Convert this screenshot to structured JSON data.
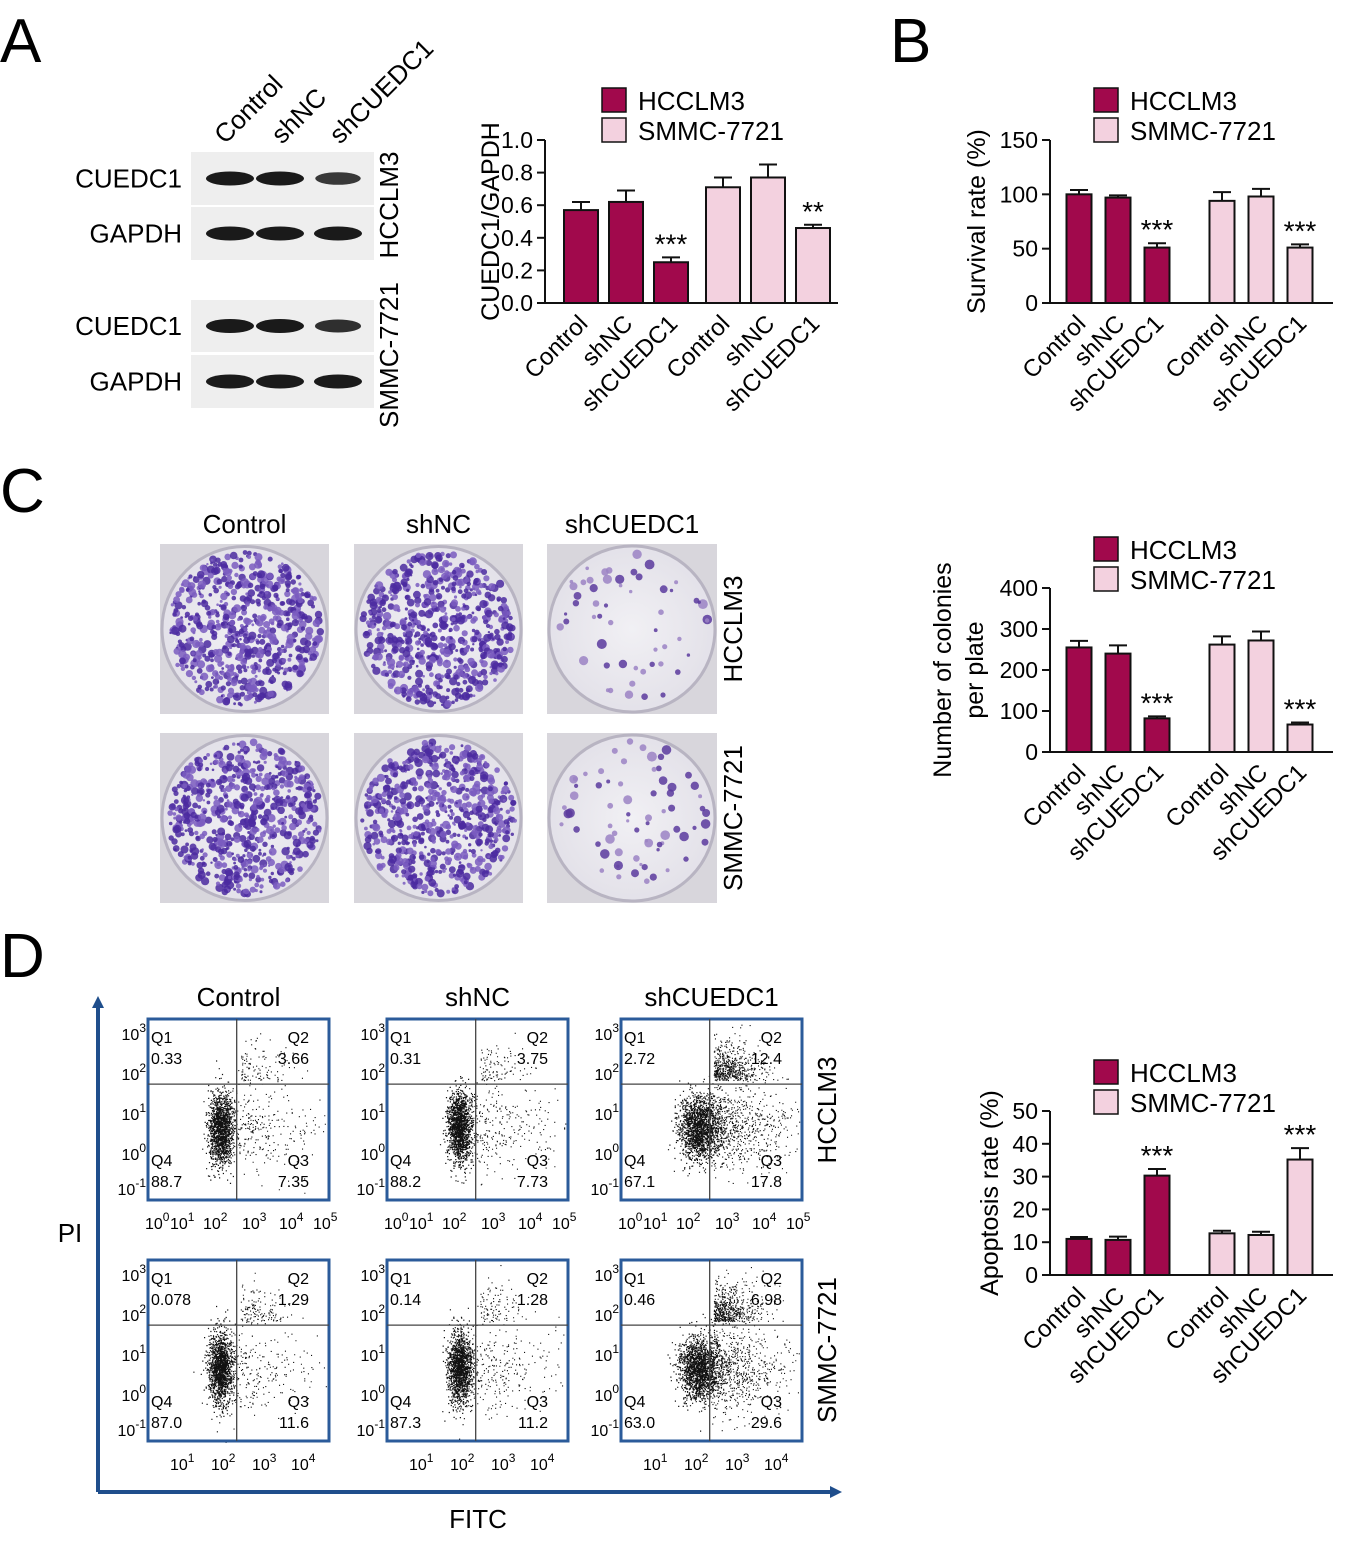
{
  "panels": {
    "A": "A",
    "B": "B",
    "C": "C",
    "D": "D"
  },
  "groups": [
    "Control",
    "shNC",
    "shCUEDC1"
  ],
  "cell_lines": [
    "HCCLM3",
    "SMMC-7721"
  ],
  "colors": {
    "HCCLM3": "#a1094c",
    "SMMC-7721": "#f3d1df",
    "axis": "#111111",
    "flow_border": "#2b5b9a",
    "flow_arrow": "#1f4e8c",
    "stain": "#4b2aa0"
  },
  "western": {
    "bands": [
      "CUEDC1",
      "GAPDH",
      "CUEDC1",
      "GAPDH"
    ]
  },
  "colony_labels": [
    "Control",
    "shNC",
    "shCUEDC1"
  ],
  "flow": {
    "y_label": "PI",
    "x_label": "FITC",
    "col_labels": [
      "Control",
      "shNC",
      "shCUEDC1"
    ],
    "row_labels": [
      "HCCLM3",
      "SMMC-7721"
    ],
    "quadrant_names": [
      "Q1",
      "Q2",
      "Q3",
      "Q4"
    ],
    "y_ticks": [
      [
        "10",
        "3"
      ],
      [
        "10",
        "2"
      ],
      [
        "10",
        "1"
      ],
      [
        "10",
        "0"
      ],
      [
        "10",
        "-1"
      ]
    ],
    "x_ticks_top": [
      [
        "10",
        "0"
      ],
      [
        "10",
        "1"
      ],
      [
        "10",
        "2"
      ],
      [
        "10",
        "3"
      ],
      [
        "10",
        "4"
      ],
      [
        "10",
        "5"
      ]
    ],
    "x_ticks_bottom": [
      [
        "10",
        "1"
      ],
      [
        "10",
        "2"
      ],
      [
        "10",
        "3"
      ],
      [
        "10",
        "4"
      ]
    ],
    "plots": [
      {
        "q1": "0.33",
        "q2": "3.66",
        "q3": "7.35",
        "q4": "88.7"
      },
      {
        "q1": "0.31",
        "q2": "3.75",
        "q3": "7.73",
        "q4": "88.2"
      },
      {
        "q1": "2.72",
        "q2": "12.4",
        "q3": "17.8",
        "q4": "67.1"
      },
      {
        "q1": "0.078",
        "q2": "1.29",
        "q3": "11.6",
        "q4": "87.0"
      },
      {
        "q1": "0.14",
        "q2": "1.28",
        "q3": "11.2",
        "q4": "87.3"
      },
      {
        "q1": "0.46",
        "q2": "6.98",
        "q3": "29.6",
        "q4": "63.0"
      }
    ]
  },
  "chart_data": [
    {
      "type": "bar",
      "ylabel": "CUEDC1/GAPDH",
      "ylim": [
        0,
        1.0
      ],
      "yticks": [
        "0.0",
        "0.2",
        "0.4",
        "0.6",
        "0.8",
        "1.0"
      ],
      "tickvals": [
        0,
        0.2,
        0.4,
        0.6,
        0.8,
        1.0
      ],
      "categories": [
        "Control",
        "shNC",
        "shCUEDC1"
      ],
      "legend": "top",
      "series": [
        {
          "name": "HCCLM3",
          "values": [
            0.57,
            0.62,
            0.25
          ],
          "errors": [
            0.05,
            0.07,
            0.03
          ],
          "stars": [
            "",
            "",
            "***"
          ]
        },
        {
          "name": "SMMC-7721",
          "values": [
            0.71,
            0.77,
            0.46
          ],
          "errors": [
            0.06,
            0.08,
            0.02
          ],
          "stars": [
            "",
            "",
            "**"
          ]
        }
      ]
    },
    {
      "type": "bar",
      "ylabel": "Survival rate (%)",
      "ylim": [
        0,
        150
      ],
      "yticks": [
        "0",
        "50",
        "100",
        "150"
      ],
      "tickvals": [
        0,
        50,
        100,
        150
      ],
      "categories": [
        "Control",
        "shNC",
        "shCUEDC1"
      ],
      "legend": "top",
      "series": [
        {
          "name": "HCCLM3",
          "values": [
            100,
            97,
            51
          ],
          "errors": [
            4,
            2,
            4
          ],
          "stars": [
            "",
            "",
            "***"
          ]
        },
        {
          "name": "SMMC-7721",
          "values": [
            94,
            98,
            51
          ],
          "errors": [
            8,
            7,
            3
          ],
          "stars": [
            "",
            "",
            "***"
          ]
        }
      ]
    },
    {
      "type": "bar",
      "ylabel": [
        "Number of colonies",
        "per plate"
      ],
      "ylim": [
        0,
        400
      ],
      "yticks": [
        "0",
        "100",
        "200",
        "300",
        "400"
      ],
      "tickvals": [
        0,
        100,
        200,
        300,
        400
      ],
      "categories": [
        "Control",
        "shNC",
        "shCUEDC1"
      ],
      "legend": "top",
      "series": [
        {
          "name": "HCCLM3",
          "values": [
            255,
            240,
            82
          ],
          "errors": [
            16,
            20,
            5
          ],
          "stars": [
            "",
            "",
            "***"
          ]
        },
        {
          "name": "SMMC-7721",
          "values": [
            262,
            272,
            67
          ],
          "errors": [
            20,
            22,
            5
          ],
          "stars": [
            "",
            "",
            "***"
          ]
        }
      ]
    },
    {
      "type": "bar",
      "ylabel": "Apoptosis rate (%)",
      "ylim": [
        0,
        50
      ],
      "yticks": [
        "0",
        "10",
        "20",
        "30",
        "40",
        "50"
      ],
      "tickvals": [
        0,
        10,
        20,
        30,
        40,
        50
      ],
      "categories": [
        "Control",
        "shNC",
        "shCUEDC1"
      ],
      "legend": "top",
      "series": [
        {
          "name": "HCCLM3",
          "values": [
            11,
            10.7,
            30.3
          ],
          "errors": [
            0.6,
            1.0,
            2.0
          ],
          "stars": [
            "",
            "",
            "***"
          ]
        },
        {
          "name": "SMMC-7721",
          "values": [
            12.7,
            12.2,
            35.2
          ],
          "errors": [
            0.8,
            1.0,
            3.5
          ],
          "stars": [
            "",
            "",
            "***"
          ]
        }
      ]
    }
  ]
}
